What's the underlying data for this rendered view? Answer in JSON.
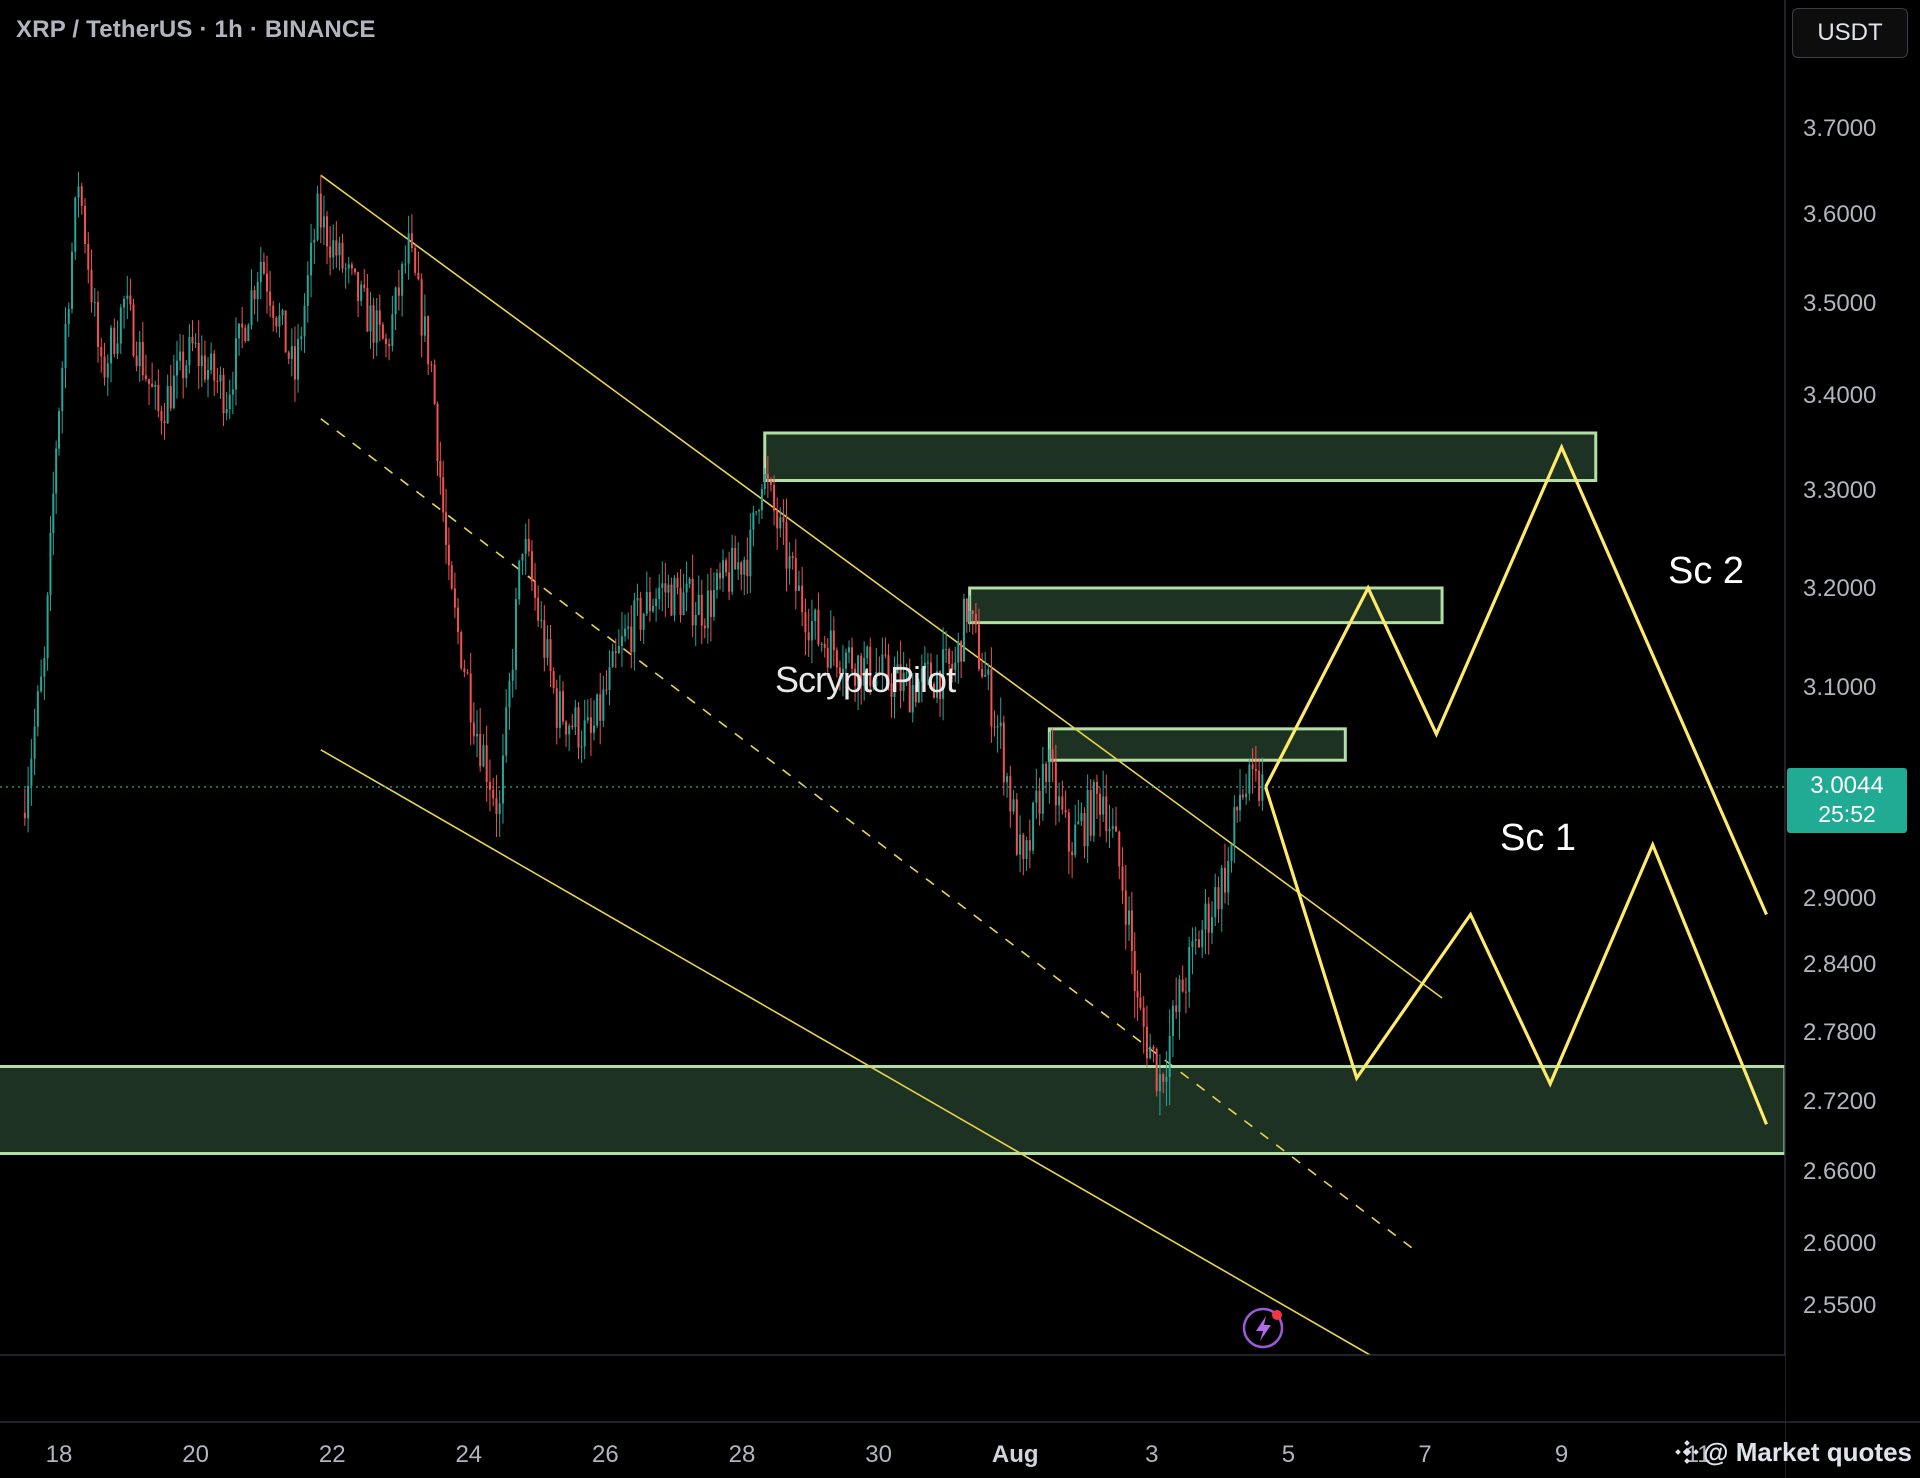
{
  "header": {
    "symbol_title": "XRP / TetherUS · 1h · BINANCE",
    "currency": "USDT"
  },
  "current_price": {
    "price": "3.0044",
    "countdown": "25:52",
    "color": "#22ab94"
  },
  "watermark": "@ Market quotes",
  "overlay_text": "ScryptoPilot",
  "chart_data": {
    "type": "candlestick",
    "title": "",
    "y_ticks": [
      "3.7000",
      "3.6000",
      "3.5000",
      "3.4000",
      "3.3000",
      "3.2000",
      "3.1000",
      "2.9000",
      "2.8400",
      "2.7800",
      "2.7200",
      "2.6600",
      "2.6000",
      "2.5500"
    ],
    "x_ticks": [
      "18",
      "20",
      "22",
      "24",
      "26",
      "28",
      "30",
      "Aug",
      "3",
      "5",
      "7",
      "9",
      "11"
    ],
    "ylim": [
      2.48,
      3.82
    ],
    "colors": {
      "up": "#26a69a",
      "down": "#ef5350",
      "zone_fill": "#1e3223",
      "zone_border": "#b2dfa3",
      "channel": "#e8d44d",
      "projection": "#ffeb6b"
    },
    "price_path": [
      {
        "date": "Jul 17 12:00",
        "price": 2.98
      },
      {
        "date": "Jul 17 20:00",
        "price": 3.12
      },
      {
        "date": "Jul 18 00:00",
        "price": 3.35
      },
      {
        "date": "Jul 18 08:00",
        "price": 3.64
      },
      {
        "date": "Jul 18 16:00",
        "price": 3.42
      },
      {
        "date": "Jul 19 00:00",
        "price": 3.5
      },
      {
        "date": "Jul 19 12:00",
        "price": 3.38
      },
      {
        "date": "Jul 20 00:00",
        "price": 3.45
      },
      {
        "date": "Jul 20 12:00",
        "price": 3.4
      },
      {
        "date": "Jul 21 00:00",
        "price": 3.55
      },
      {
        "date": "Jul 21 12:00",
        "price": 3.42
      },
      {
        "date": "Jul 21 20:00",
        "price": 3.6
      },
      {
        "date": "Jul 22 08:00",
        "price": 3.52
      },
      {
        "date": "Jul 22 20:00",
        "price": 3.45
      },
      {
        "date": "Jul 23 04:00",
        "price": 3.56
      },
      {
        "date": "Jul 23 12:00",
        "price": 3.43
      },
      {
        "date": "Jul 23 18:00",
        "price": 3.2
      },
      {
        "date": "Jul 24 04:00",
        "price": 3.06
      },
      {
        "date": "Jul 24 12:00",
        "price": 2.98
      },
      {
        "date": "Jul 24 20:00",
        "price": 3.25
      },
      {
        "date": "Jul 25 08:00",
        "price": 3.08
      },
      {
        "date": "Jul 25 20:00",
        "price": 3.05
      },
      {
        "date": "Jul 26 08:00",
        "price": 3.15
      },
      {
        "date": "Jul 26 20:00",
        "price": 3.2
      },
      {
        "date": "Jul 27 12:00",
        "price": 3.18
      },
      {
        "date": "Jul 28 04:00",
        "price": 3.24
      },
      {
        "date": "Jul 28 08:00",
        "price": 3.32
      },
      {
        "date": "Jul 28 20:00",
        "price": 3.2
      },
      {
        "date": "Jul 29 04:00",
        "price": 3.15
      },
      {
        "date": "Jul 29 20:00",
        "price": 3.12
      },
      {
        "date": "Jul 30 12:00",
        "price": 3.1
      },
      {
        "date": "Jul 31 04:00",
        "price": 3.12
      },
      {
        "date": "Jul 31 08:00",
        "price": 3.18
      },
      {
        "date": "Jul 31 20:00",
        "price": 3.05
      },
      {
        "date": "Aug 1 04:00",
        "price": 2.92
      },
      {
        "date": "Aug 1 12:00",
        "price": 3.03
      },
      {
        "date": "Aug 1 20:00",
        "price": 2.95
      },
      {
        "date": "Aug 2 08:00",
        "price": 3.0
      },
      {
        "date": "Aug 2 16:00",
        "price": 2.9
      },
      {
        "date": "Aug 2 20:00",
        "price": 2.8
      },
      {
        "date": "Aug 3 04:00",
        "price": 2.74
      },
      {
        "date": "Aug 3 12:00",
        "price": 2.82
      },
      {
        "date": "Aug 3 20:00",
        "price": 2.88
      },
      {
        "date": "Aug 4 04:00",
        "price": 2.93
      },
      {
        "date": "Aug 4 08:00",
        "price": 3.0
      },
      {
        "date": "Aug 4 16:00",
        "price": 3.0044
      }
    ],
    "supply_zones": [
      {
        "from": "Jul 28 08:00",
        "to": "Aug 9 12:00",
        "price_low": 3.31,
        "price_high": 3.36
      },
      {
        "from": "Jul 31 08:00",
        "to": "Aug 7 06:00",
        "price_low": 3.165,
        "price_high": 3.2
      },
      {
        "from": "Aug 1 12:00",
        "to": "Aug 5 20:00",
        "price_low": 3.03,
        "price_high": 3.06
      }
    ],
    "demand_zone": {
      "from": "Jul 17",
      "to": "Aug 11",
      "price_low": 2.675,
      "price_high": 2.75
    },
    "channel": {
      "upper": [
        {
          "date": "Jul 21 20:00",
          "price": 3.645
        },
        {
          "date": "Aug 7 06:00",
          "price": 2.81
        }
      ],
      "mid": [
        {
          "date": "Jul 21 20:00",
          "price": 3.375
        },
        {
          "date": "Aug 6 20:00",
          "price": 2.595
        }
      ],
      "lower": [
        {
          "date": "Jul 21 20:00",
          "price": 3.04
        },
        {
          "date": "Aug 6 12:00",
          "price": 2.5
        }
      ]
    },
    "scenarios": [
      {
        "name": "Sc 1",
        "path": [
          {
            "date": "Aug 4 16:00",
            "price": 3.0044
          },
          {
            "date": "Aug 6 00:00",
            "price": 2.74
          },
          {
            "date": "Aug 7 16:00",
            "price": 2.885
          },
          {
            "date": "Aug 8 20:00",
            "price": 2.735
          },
          {
            "date": "Aug 10 08:00",
            "price": 2.95
          },
          {
            "date": "Aug 12 00:00",
            "price": 2.7
          }
        ]
      },
      {
        "name": "Sc 2",
        "path": [
          {
            "date": "Aug 4 16:00",
            "price": 3.0044
          },
          {
            "date": "Aug 6 04:00",
            "price": 3.2
          },
          {
            "date": "Aug 7 04:00",
            "price": 3.055
          },
          {
            "date": "Aug 9 00:00",
            "price": 3.345
          },
          {
            "date": "Aug 12 00:00",
            "price": 2.885
          }
        ]
      }
    ]
  }
}
